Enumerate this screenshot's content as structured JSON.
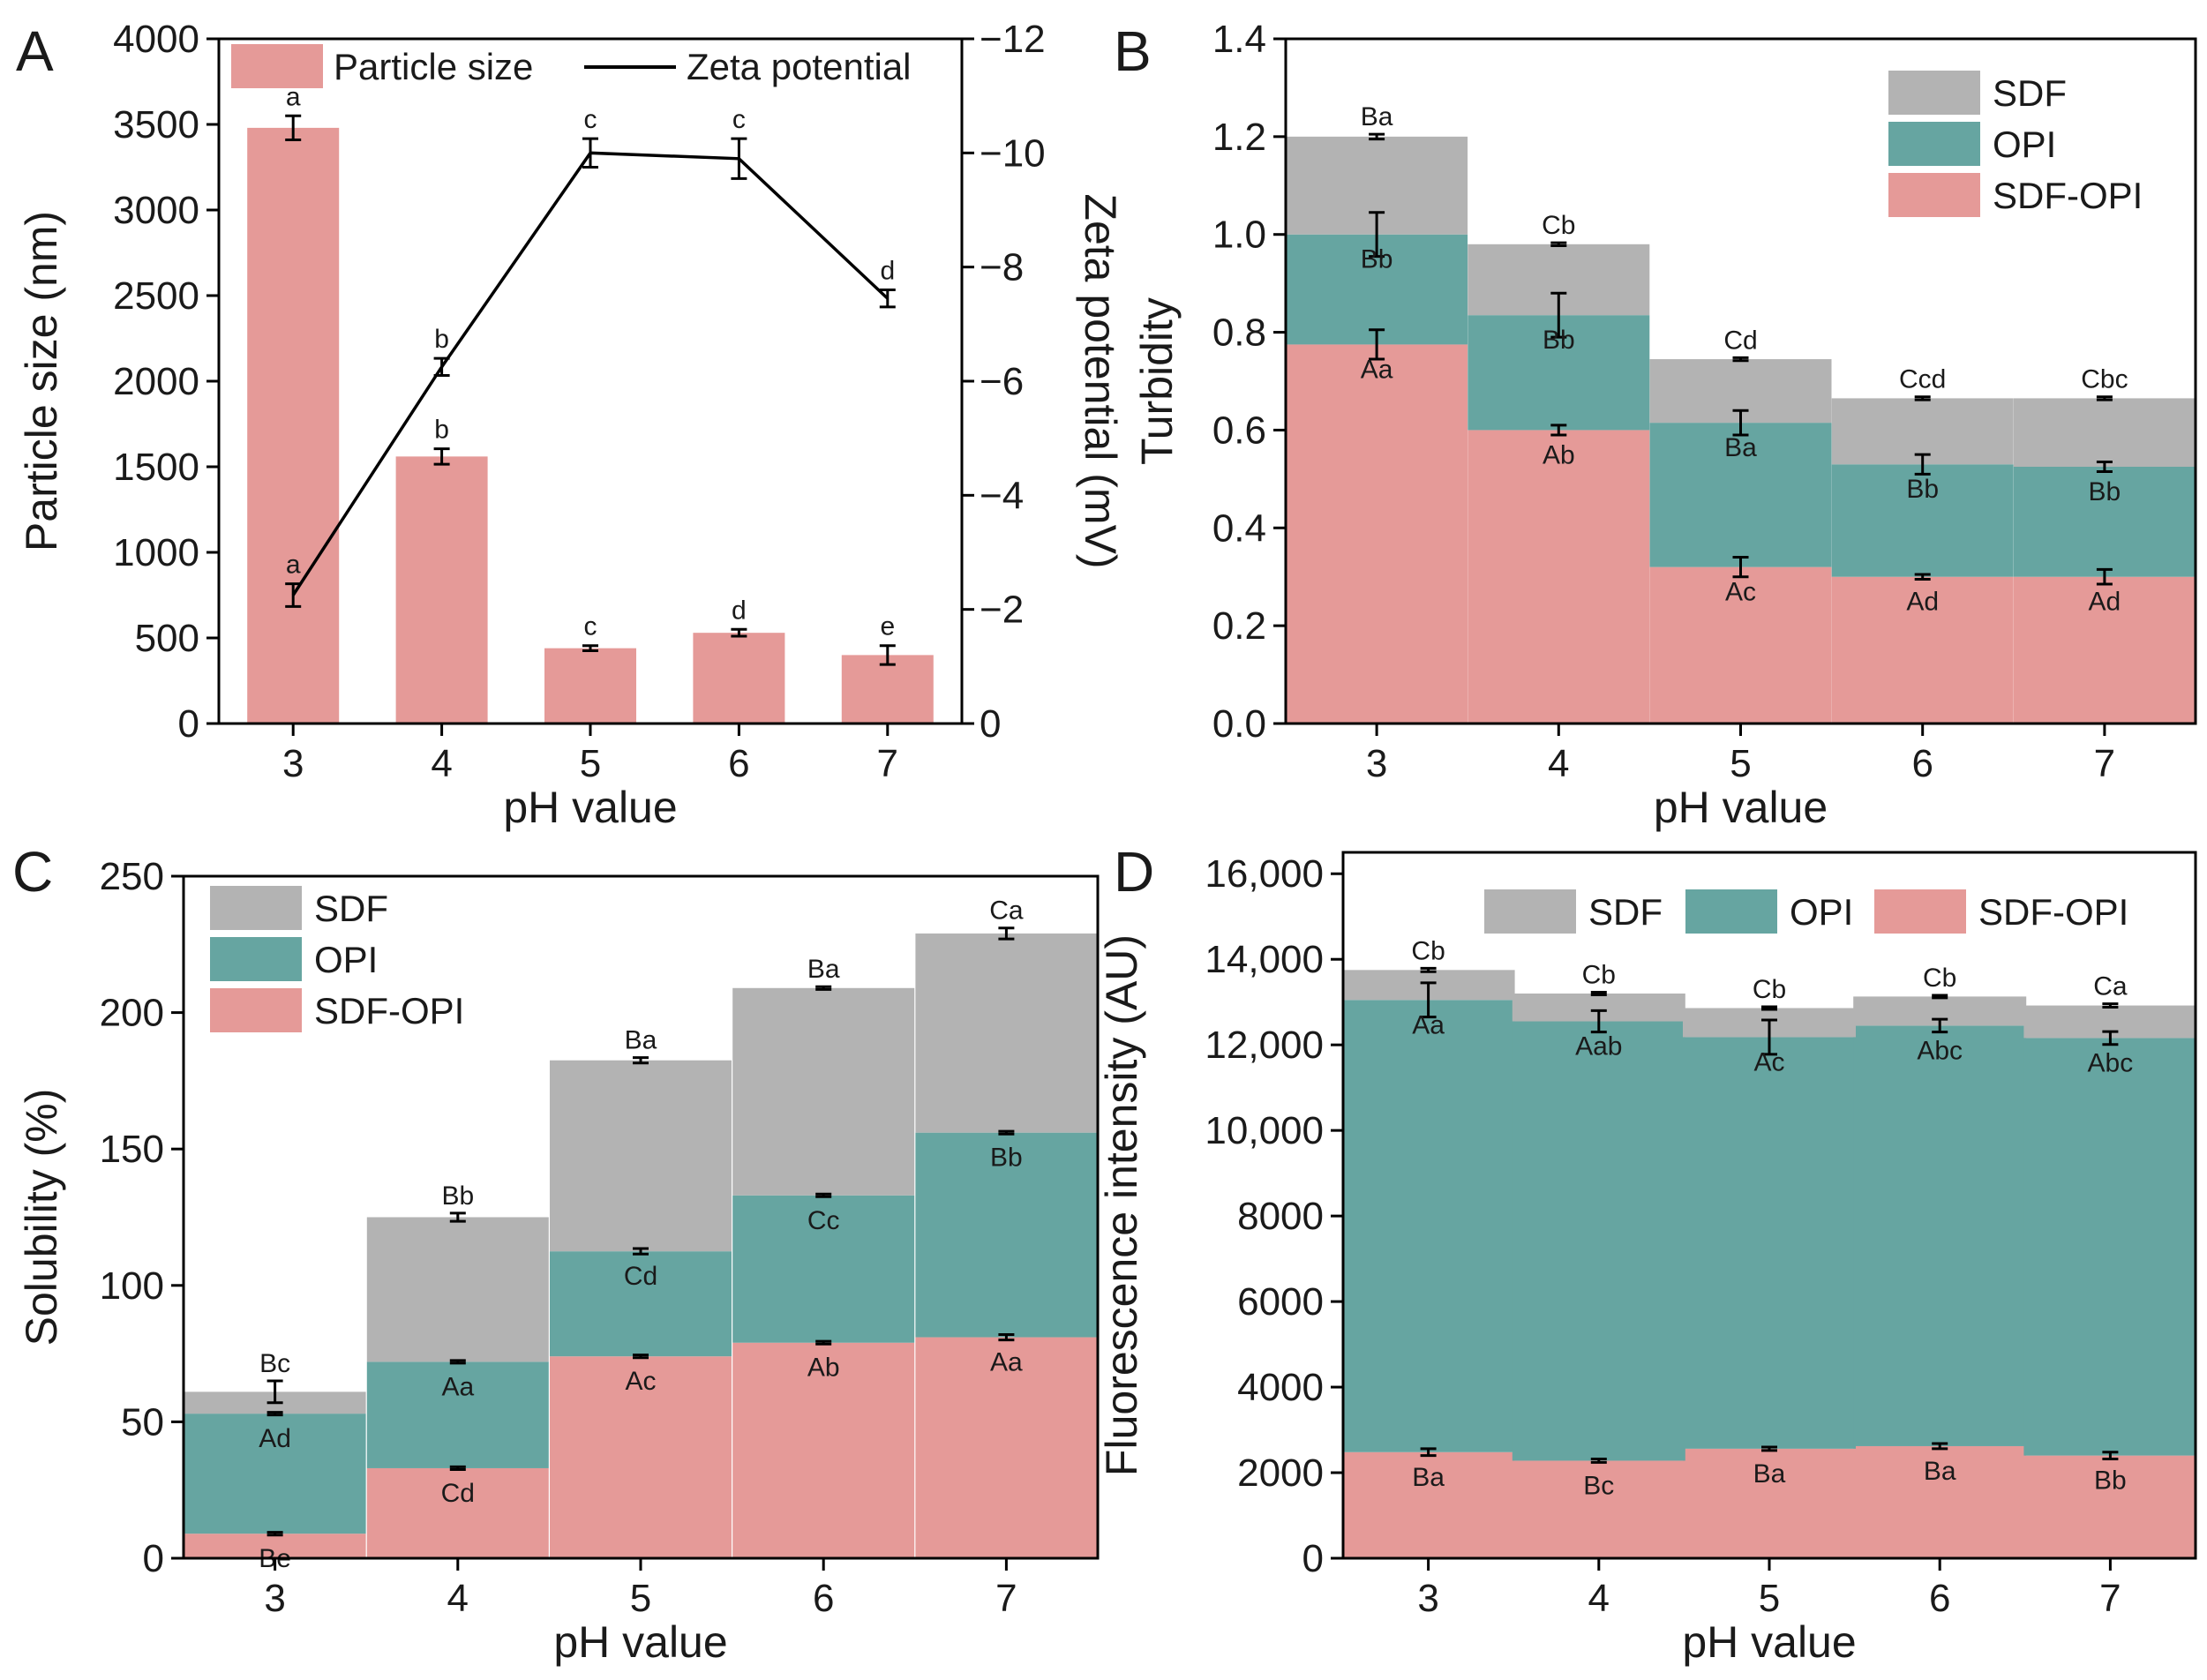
{
  "colors": {
    "sdf_opi": "#E59A98",
    "opi": "#66A5A1",
    "sdf": "#B3B3B3",
    "line": "#000000"
  },
  "chart_data": [
    {
      "panel": "A",
      "type": "bar",
      "xlabel": "pH value",
      "ylabel": "Particle size (nm)",
      "y2label": "Zeta potential (mV)",
      "categories": [
        "3",
        "4",
        "5",
        "6",
        "7"
      ],
      "ylim": [
        0,
        4000
      ],
      "yticks": [
        0,
        500,
        1000,
        1500,
        2000,
        2500,
        3000,
        3500,
        4000
      ],
      "y2lim": [
        0,
        -12
      ],
      "y2ticks": [
        0,
        -2,
        -4,
        -6,
        -8,
        -10,
        -12
      ],
      "y2ticklabels": [
        "0",
        "−2",
        "−4",
        "−6",
        "−8",
        "−10",
        "−12"
      ],
      "legend": [
        "Particle size",
        "Zeta potential"
      ],
      "series": [
        {
          "name": "Particle size",
          "type": "bar",
          "values": [
            3480,
            1560,
            440,
            530,
            400
          ],
          "errors": [
            70,
            45,
            15,
            20,
            55
          ],
          "labels": [
            "a",
            "b",
            "c",
            "d",
            "e"
          ]
        },
        {
          "name": "Zeta potential",
          "type": "line",
          "axis": "y2",
          "values": [
            -2.25,
            -6.25,
            -10.0,
            -9.9,
            -7.45
          ],
          "errors": [
            0.2,
            0.15,
            0.25,
            0.35,
            0.15
          ],
          "labels": [
            "a",
            "b",
            "c",
            "c",
            "d"
          ]
        }
      ]
    },
    {
      "panel": "B",
      "type": "stacked-bar",
      "xlabel": "pH value",
      "ylabel": "Turbidity",
      "categories": [
        "3",
        "4",
        "5",
        "6",
        "7"
      ],
      "ylim": [
        0,
        1.4
      ],
      "yticks": [
        0,
        0.2,
        0.4,
        0.6,
        0.8,
        1.0,
        1.2,
        1.4
      ],
      "yticklabels": [
        "0.0",
        "0.2",
        "0.4",
        "0.6",
        "0.8",
        "1.0",
        "1.2",
        "1.4"
      ],
      "legend": [
        "SDF",
        "OPI",
        "SDF-OPI"
      ],
      "legend_position": "top-right",
      "series": [
        {
          "name": "SDF-OPI",
          "values": [
            0.775,
            0.6,
            0.32,
            0.3,
            0.3
          ],
          "errors": [
            0.03,
            0.01,
            0.02,
            0.005,
            0.015
          ],
          "labels": [
            "Aa",
            "Ab",
            "Ac",
            "Ad",
            "Ad"
          ]
        },
        {
          "name": "OPI",
          "values": [
            0.225,
            0.235,
            0.295,
            0.23,
            0.225
          ],
          "errors": [
            0.045,
            0.045,
            0.025,
            0.02,
            0.01
          ],
          "labels": [
            "Bb",
            "Bb",
            "Ba",
            "Bb",
            "Bb"
          ]
        },
        {
          "name": "SDF",
          "values": [
            0.2,
            0.145,
            0.13,
            0.135,
            0.14
          ],
          "errors": [
            0.005,
            0.003,
            0.003,
            0.003,
            0.003
          ],
          "labels": [
            "Ba",
            "Cb",
            "Cd",
            "Ccd",
            "Cbc"
          ]
        }
      ]
    },
    {
      "panel": "C",
      "type": "stacked-bar",
      "xlabel": "pH value",
      "ylabel": "Solubility (%)",
      "categories": [
        "3",
        "4",
        "5",
        "6",
        "7"
      ],
      "ylim": [
        0,
        250
      ],
      "yticks": [
        0,
        50,
        100,
        150,
        200,
        250
      ],
      "legend": [
        "SDF",
        "OPI",
        "SDF-OPI"
      ],
      "legend_position": "top-left",
      "series": [
        {
          "name": "SDF-OPI",
          "values": [
            9,
            33,
            74,
            79,
            81
          ],
          "errors": [
            0.5,
            0.5,
            0.5,
            0.5,
            1
          ],
          "labels": [
            "Be",
            "Cd",
            "Ac",
            "Ab",
            "Aa"
          ]
        },
        {
          "name": "OPI",
          "values": [
            44,
            39,
            38.5,
            54,
            75
          ],
          "errors": [
            0.5,
            0.5,
            1,
            0.5,
            0.5
          ],
          "labels": [
            "Ad",
            "Aa",
            "Cd",
            "Cc",
            "Bb"
          ]
        },
        {
          "name": "SDF",
          "values": [
            8,
            53,
            70,
            76,
            73
          ],
          "errors": [
            4,
            1.5,
            1,
            0.5,
            2
          ],
          "labels": [
            "Bc",
            "Bb",
            "Ba",
            "Ba",
            "Ca"
          ]
        }
      ]
    },
    {
      "panel": "D",
      "type": "stacked-bar",
      "xlabel": "pH value",
      "ylabel": "Fluorescence intensity (AU)",
      "categories": [
        "3",
        "4",
        "5",
        "6",
        "7"
      ],
      "ylim": [
        0,
        16500
      ],
      "yticks": [
        0,
        2000,
        4000,
        6000,
        8000,
        10000,
        12000,
        14000,
        16000
      ],
      "yticklabels": [
        "0",
        "2000",
        "4000",
        "6000",
        "8000",
        "10,000",
        "12,000",
        "14,000",
        "16,000"
      ],
      "legend": [
        "SDF",
        "OPI",
        "SDF-OPI"
      ],
      "legend_position": "top",
      "series": [
        {
          "name": "SDF-OPI",
          "values": [
            2480,
            2280,
            2560,
            2620,
            2400
          ],
          "errors": [
            80,
            40,
            40,
            60,
            80
          ],
          "labels": [
            "Ba",
            "Bc",
            "Ba",
            "Ba",
            "Bb"
          ]
        },
        {
          "name": "OPI",
          "values": [
            10570,
            10270,
            9620,
            9830,
            9760
          ],
          "errors": [
            400,
            250,
            400,
            150,
            150
          ],
          "labels": [
            "Aa",
            "Aab",
            "Ac",
            "Abc",
            "Abc"
          ]
        },
        {
          "name": "SDF",
          "values": [
            700,
            650,
            680,
            680,
            760
          ],
          "errors": [
            40,
            30,
            30,
            30,
            40
          ],
          "labels": [
            "Cb",
            "Cb",
            "Cb",
            "Cb",
            "Ca"
          ]
        }
      ]
    }
  ]
}
